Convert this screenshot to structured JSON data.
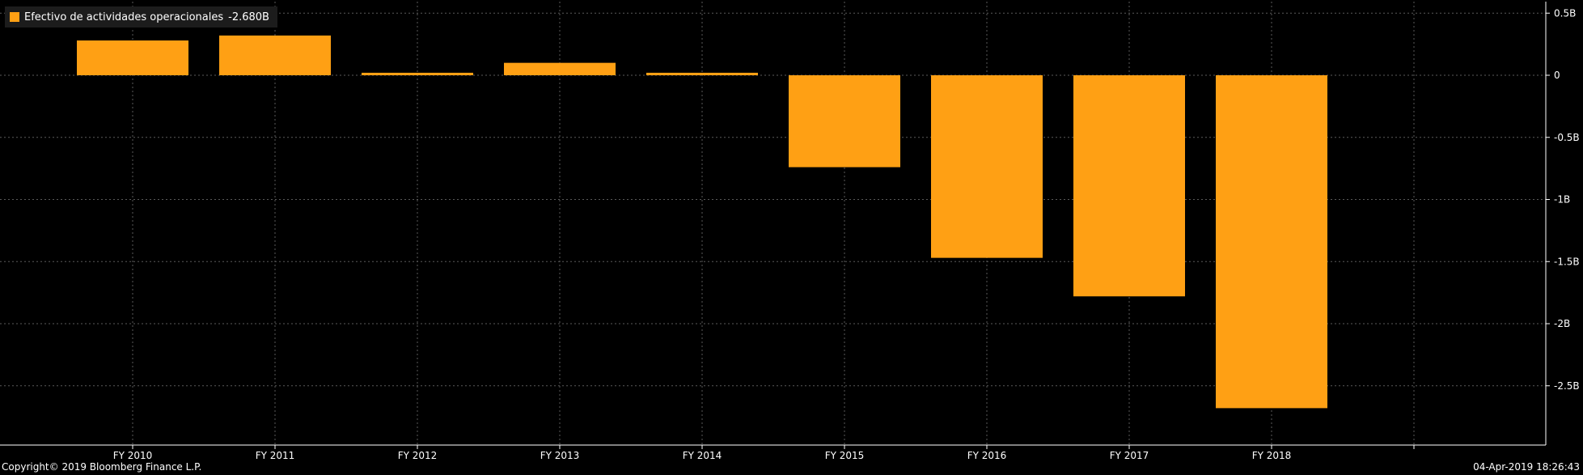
{
  "legend": {
    "label": "Efectivo de actividades operacionales",
    "last_value": "-2.680B"
  },
  "footer": {
    "copyright": "Copyright© 2019 Bloomberg Finance L.P.",
    "timestamp": "04-Apr-2019 18:26:43"
  },
  "colors": {
    "background": "#000000",
    "bar": "#ffa014",
    "grid": "#5a5a5a",
    "axis": "#ffffff",
    "legend_bg": "#1c1c1c"
  },
  "chart_data": {
    "type": "bar",
    "categories": [
      "FY 2010",
      "FY 2011",
      "FY 2012",
      "FY 2013",
      "FY 2014",
      "FY 2015",
      "FY 2016",
      "FY 2017",
      "FY 2018"
    ],
    "series": [
      {
        "name": "Efectivo de actividades operacionales",
        "values": [
          0.28,
          0.32,
          0.02,
          0.1,
          0.02,
          -0.74,
          -1.47,
          -1.78,
          -2.68
        ]
      }
    ],
    "unit": "B",
    "ylim": [
      -2.95,
      0.5
    ],
    "yticks": [
      0.5,
      0,
      -0.5,
      -1,
      -1.5,
      -2,
      -2.5
    ],
    "ytick_labels": [
      "0.5B",
      "0",
      "-0.5B",
      "-1B",
      "-1.5B",
      "-2B",
      "-2.5B"
    ],
    "grid": true,
    "y_axis_position": "right",
    "legend_position": "top-left"
  }
}
